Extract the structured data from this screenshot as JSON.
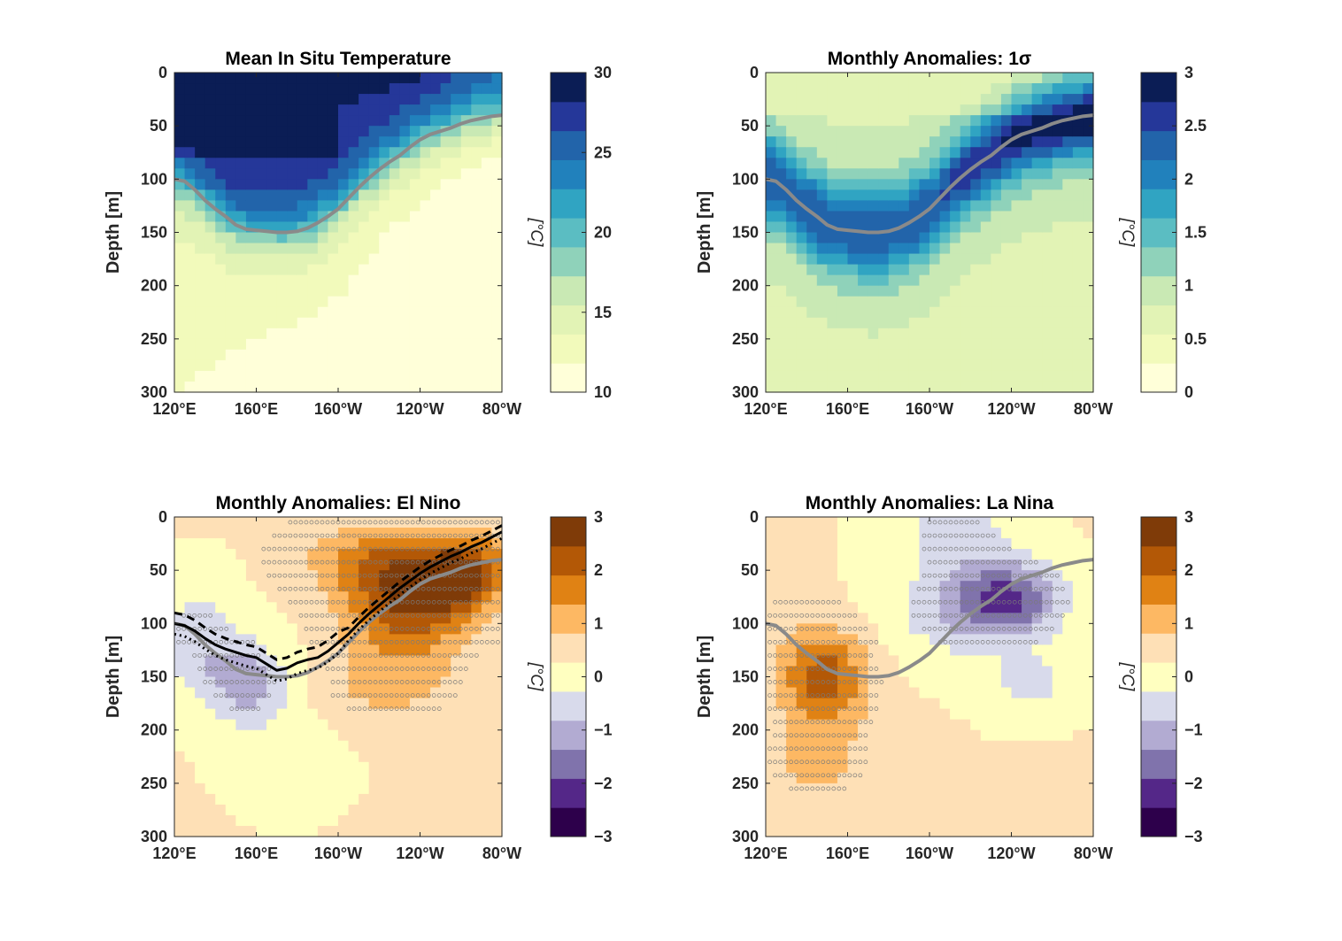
{
  "chart_data": [
    {
      "type": "heatmap",
      "title": "Mean In Situ Temperature",
      "ylabel": "Depth [m]",
      "x_ticks": [
        "120°E",
        "160°E",
        "160°W",
        "120°W",
        "80°W"
      ],
      "y_ticks": [
        "0",
        "50",
        "100",
        "150",
        "200",
        "250",
        "300"
      ],
      "xlim_deg_east": [
        120,
        280
      ],
      "ylim_depth_m": [
        300,
        0
      ],
      "field": "mean",
      "thermocline_depth_m": {
        "lon_deg_east": [
          120,
          125,
          130,
          135,
          140,
          145,
          150,
          155,
          160,
          165,
          170,
          175,
          180,
          185,
          190,
          195,
          200,
          205,
          210,
          215,
          220,
          225,
          230,
          235,
          240,
          245,
          250,
          255,
          260,
          265,
          270,
          275,
          280
        ],
        "depth_m": [
          100,
          102,
          110,
          120,
          128,
          135,
          143,
          147,
          148,
          149,
          150,
          150,
          149,
          146,
          141,
          135,
          128,
          118,
          108,
          99,
          91,
          84,
          78,
          70,
          63,
          58,
          55,
          52,
          48,
          45,
          43,
          41,
          40
        ]
      },
      "colorbar": {
        "label": "[°C]",
        "range": [
          10,
          30
        ],
        "ticks": [
          "10",
          "15",
          "20",
          "25",
          "30"
        ],
        "colors": [
          "#ffffd9",
          "#f2fabb",
          "#e2f3b5",
          "#c9e9b4",
          "#8fd2ba",
          "#5bbdc2",
          "#30a4c2",
          "#2181bc",
          "#2264aa",
          "#253799",
          "#0b1d55"
        ]
      }
    },
    {
      "type": "heatmap",
      "title": "Monthly Anomalies: 1σ",
      "ylabel": "",
      "x_ticks": [
        "120°E",
        "160°E",
        "160°W",
        "120°W",
        "80°W"
      ],
      "y_ticks": [
        "0",
        "50",
        "100",
        "150",
        "200",
        "250",
        "300"
      ],
      "xlim_deg_east": [
        120,
        280
      ],
      "ylim_depth_m": [
        300,
        0
      ],
      "field": "std",
      "thermocline_depth_m": "same as panel 1",
      "colorbar": {
        "label": "[°C]",
        "range": [
          0,
          3
        ],
        "ticks": [
          "0",
          "0.5",
          "1",
          "1.5",
          "2",
          "2.5",
          "3"
        ],
        "colors": [
          "#ffffd9",
          "#f2fabb",
          "#e2f3b5",
          "#c9e9b4",
          "#8fd2ba",
          "#5bbdc2",
          "#30a4c2",
          "#2181bc",
          "#2264aa",
          "#253799",
          "#0b1d55"
        ]
      }
    },
    {
      "type": "heatmap",
      "title": "Monthly Anomalies: El Nino",
      "ylabel": "Depth [m]",
      "x_ticks": [
        "120°E",
        "160°E",
        "160°W",
        "120°W",
        "80°W"
      ],
      "y_ticks": [
        "0",
        "50",
        "100",
        "150",
        "200",
        "250",
        "300"
      ],
      "xlim_deg_east": [
        120,
        280
      ],
      "ylim_depth_m": [
        300,
        0
      ],
      "field": "elnino",
      "stippling": "significance markers",
      "thermocline_depth_m": "same as panel 1",
      "elnino_thermocline_depth_m": {
        "lon_deg_east": [
          120,
          125,
          130,
          135,
          140,
          145,
          150,
          155,
          160,
          165,
          170,
          175,
          180,
          185,
          190,
          195,
          200,
          205,
          210,
          215,
          220,
          225,
          230,
          235,
          240,
          245,
          250,
          255,
          260,
          265,
          270,
          275,
          280
        ],
        "depth_m": [
          100,
          102,
          107,
          114,
          120,
          124,
          127,
          130,
          132,
          138,
          144,
          142,
          137,
          134,
          132,
          126,
          118,
          110,
          100,
          91,
          83,
          75,
          67,
          60,
          53,
          47,
          42,
          37,
          33,
          28,
          24,
          19,
          14
        ]
      },
      "colorbar": {
        "label": "[°C]",
        "range": [
          -3,
          3
        ],
        "ticks": [
          "−3",
          "−2",
          "−1",
          "0",
          "1",
          "2",
          "3"
        ],
        "colors": [
          "#2d004b",
          "#542788",
          "#8073ac",
          "#b2abd2",
          "#d8daeb",
          "#ffffc0",
          "#fee0b6",
          "#fdb863",
          "#e08214",
          "#b35806",
          "#7f3b08"
        ]
      }
    },
    {
      "type": "heatmap",
      "title": "Monthly Anomalies: La Nina",
      "ylabel": "Depth [m]",
      "x_ticks": [
        "120°E",
        "160°E",
        "160°W",
        "120°W",
        "80°W"
      ],
      "y_ticks": [
        "0",
        "50",
        "100",
        "150",
        "200",
        "250",
        "300"
      ],
      "xlim_deg_east": [
        120,
        280
      ],
      "ylim_depth_m": [
        300,
        0
      ],
      "field": "lanina",
      "stippling": "significance markers",
      "thermocline_depth_m": "same as panel 1",
      "colorbar": {
        "label": "[°C]",
        "range": [
          -3,
          3
        ],
        "ticks": [
          "−3",
          "−2",
          "−1",
          "0",
          "1",
          "2",
          "3"
        ],
        "colors": [
          "#2d004b",
          "#542788",
          "#8073ac",
          "#b2abd2",
          "#d8daeb",
          "#ffffc0",
          "#fee0b6",
          "#fdb863",
          "#e08214",
          "#b35806",
          "#7f3b08"
        ]
      }
    }
  ],
  "colors": {
    "thermocline": "#8a8a8a",
    "elnino_thermocline": "#000000",
    "stipple": "#7a7a7a"
  }
}
